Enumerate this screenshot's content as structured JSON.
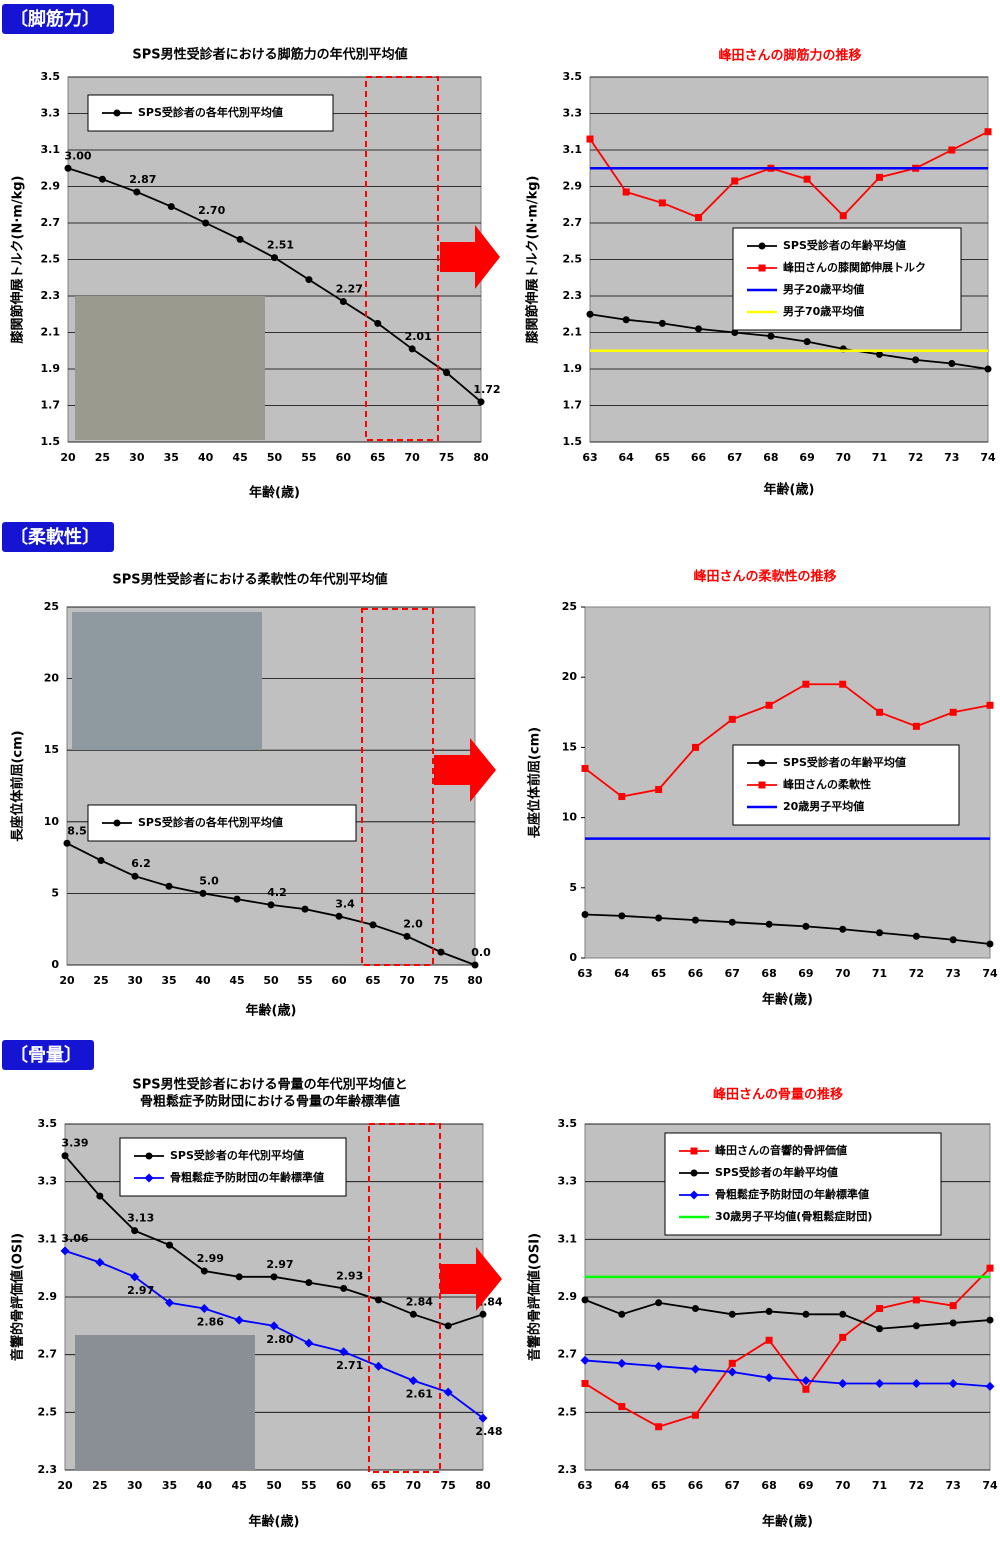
{
  "sections": [
    "〔脚筋力〕",
    "〔柔軟性〕",
    "〔骨量〕"
  ],
  "chart_data": [
    {
      "type": "line",
      "title": "SPS男性受診者における脚筋力の年代別平均値",
      "title_color": "#000000",
      "x_label": "年齢(歳)",
      "y_label": "膝関節伸展トルク(N·m/kg)",
      "categories": [
        "20",
        "25",
        "30",
        "35",
        "40",
        "45",
        "50",
        "55",
        "60",
        "65",
        "70",
        "75",
        "80"
      ],
      "ylim": [
        1.5,
        3.5
      ],
      "yticks": [
        1.5,
        1.7,
        1.9,
        2.1,
        2.3,
        2.5,
        2.7,
        2.9,
        3.1,
        3.3,
        3.5
      ],
      "grid": true,
      "series": [
        {
          "name": "SPS受診者の各年代別平均値",
          "color": "#000000",
          "marker": "circle",
          "values": [
            3.0,
            2.94,
            2.87,
            2.79,
            2.7,
            2.61,
            2.51,
            2.39,
            2.27,
            2.15,
            2.01,
            1.88,
            1.72
          ],
          "value_labels": [
            "3.00",
            null,
            "2.87",
            null,
            "2.70",
            null,
            "2.51",
            null,
            "2.27",
            null,
            "2.01",
            null,
            "1.72"
          ]
        }
      ]
    },
    {
      "type": "line",
      "title": "峰田さんの脚筋力の推移",
      "title_color": "#ff0000",
      "x_label": "年齢(歳)",
      "y_label": "膝関節伸展トルク(N·m/kg)",
      "categories": [
        "63",
        "64",
        "65",
        "66",
        "67",
        "68",
        "69",
        "70",
        "71",
        "72",
        "73",
        "74"
      ],
      "ylim": [
        1.5,
        3.5
      ],
      "yticks": [
        1.5,
        1.7,
        1.9,
        2.1,
        2.3,
        2.5,
        2.7,
        2.9,
        3.1,
        3.3,
        3.5
      ],
      "grid": true,
      "series": [
        {
          "name": "SPS受診者の年齢平均値",
          "color": "#000000",
          "marker": "circle",
          "values": [
            2.2,
            2.17,
            2.15,
            2.12,
            2.1,
            2.08,
            2.05,
            2.01,
            1.98,
            1.95,
            1.93,
            1.9
          ]
        },
        {
          "name": "峰田さんの膝関節伸展トルク",
          "color": "#ff0000",
          "marker": "square",
          "values": [
            3.16,
            2.87,
            2.81,
            2.73,
            2.93,
            3.0,
            2.94,
            2.74,
            2.95,
            3.0,
            3.1,
            3.2
          ]
        },
        {
          "name": "男子20歳平均値",
          "color": "#0000ff",
          "marker": "none",
          "value": 3.0
        },
        {
          "name": "男子70歳平均値",
          "color": "#ffff00",
          "marker": "none",
          "value": 2.0
        }
      ]
    },
    {
      "type": "line",
      "title": "SPS男性受診者における柔軟性の年代別平均値",
      "title_color": "#000000",
      "x_label": "年齢(歳)",
      "y_label": "長座位体前屈(cm)",
      "categories": [
        "20",
        "25",
        "30",
        "35",
        "40",
        "45",
        "50",
        "55",
        "60",
        "65",
        "70",
        "75",
        "80"
      ],
      "ylim": [
        0,
        25
      ],
      "yticks": [
        0,
        5,
        10,
        15,
        20,
        25
      ],
      "grid": true,
      "series": [
        {
          "name": "SPS受診者の各年代別平均値",
          "color": "#000000",
          "marker": "circle",
          "values": [
            8.5,
            7.3,
            6.2,
            5.5,
            5.0,
            4.6,
            4.2,
            3.9,
            3.4,
            2.8,
            2.0,
            0.9,
            0.0
          ],
          "value_labels": [
            "8.5",
            null,
            "6.2",
            null,
            "5.0",
            null,
            "4.2",
            null,
            "3.4",
            null,
            "2.0",
            null,
            "0.0"
          ]
        }
      ]
    },
    {
      "type": "line",
      "title": "峰田さんの柔軟性の推移",
      "title_color": "#ff0000",
      "x_label": "年齢(歳)",
      "y_label": "長座位体前屈(cm)",
      "categories": [
        "63",
        "64",
        "65",
        "66",
        "67",
        "68",
        "69",
        "70",
        "71",
        "72",
        "73",
        "74"
      ],
      "ylim": [
        0,
        25
      ],
      "yticks": [
        0,
        5,
        10,
        15,
        20,
        25
      ],
      "grid": false,
      "series": [
        {
          "name": "SPS受診者の年齢平均値",
          "color": "#000000",
          "marker": "circle",
          "values": [
            3.1,
            3.0,
            2.85,
            2.7,
            2.55,
            2.4,
            2.25,
            2.05,
            1.8,
            1.55,
            1.3,
            1.0
          ]
        },
        {
          "name": "峰田さんの柔軟性",
          "color": "#ff0000",
          "marker": "square",
          "values": [
            13.5,
            11.5,
            12.0,
            15.0,
            17.0,
            18.0,
            19.5,
            19.5,
            17.5,
            16.5,
            17.5,
            18.0
          ]
        },
        {
          "name": "20歳男子平均値",
          "color": "#0000ff",
          "marker": "none",
          "value": 8.5
        }
      ]
    },
    {
      "type": "line",
      "title": [
        "SPS男性受診者における骨量の年代別平均値と",
        "骨粗鬆症予防財団における骨量の年齢標準値"
      ],
      "title_color": "#000000",
      "x_label": "年齢(歳)",
      "y_label": "音響的骨評価値(OSI)",
      "categories": [
        "20",
        "25",
        "30",
        "35",
        "40",
        "45",
        "50",
        "55",
        "60",
        "65",
        "70",
        "75",
        "80"
      ],
      "ylim": [
        2.3,
        3.5
      ],
      "yticks": [
        2.3,
        2.5,
        2.7,
        2.9,
        3.1,
        3.3,
        3.5
      ],
      "grid": true,
      "series": [
        {
          "name": "SPS受診者の年代別平均値",
          "color": "#000000",
          "marker": "circle",
          "values": [
            3.39,
            3.25,
            3.13,
            3.08,
            2.99,
            2.97,
            2.97,
            2.95,
            2.93,
            2.89,
            2.84,
            2.8,
            2.84
          ],
          "value_labels": [
            "3.39",
            null,
            "3.13",
            null,
            "2.99",
            null,
            "2.97",
            null,
            "2.93",
            null,
            "2.84",
            null,
            "2.84"
          ]
        },
        {
          "name": "骨粗鬆症予防財団の年齢標準値",
          "color": "#0000ff",
          "marker": "diamond",
          "values": [
            3.06,
            3.02,
            2.97,
            2.88,
            2.86,
            2.82,
            2.8,
            2.74,
            2.71,
            2.66,
            2.61,
            2.57,
            2.48
          ],
          "value_labels": [
            "3.06",
            null,
            "2.97",
            null,
            "2.86",
            null,
            "2.80",
            null,
            "2.71",
            null,
            "2.61",
            null,
            "2.48"
          ]
        }
      ]
    },
    {
      "type": "line",
      "title": "峰田さんの骨量の推移",
      "title_color": "#ff0000",
      "x_label": "年齢(歳)",
      "y_label": "音響的骨評価値(OSI)",
      "categories": [
        "63",
        "64",
        "65",
        "66",
        "67",
        "68",
        "69",
        "70",
        "71",
        "72",
        "73",
        "74"
      ],
      "ylim": [
        2.3,
        3.5
      ],
      "yticks": [
        2.3,
        2.5,
        2.7,
        2.9,
        3.1,
        3.3,
        3.5
      ],
      "grid": true,
      "series": [
        {
          "name": "峰田さんの音響的骨評価値",
          "color": "#ff0000",
          "marker": "square",
          "values": [
            2.6,
            2.52,
            2.45,
            2.49,
            2.67,
            2.75,
            2.58,
            2.76,
            2.86,
            2.89,
            2.87,
            3.0
          ]
        },
        {
          "name": "SPS受診者の年齢平均値",
          "color": "#000000",
          "marker": "circle",
          "values": [
            2.89,
            2.84,
            2.88,
            2.86,
            2.84,
            2.85,
            2.84,
            2.84,
            2.79,
            2.8,
            2.81,
            2.82
          ]
        },
        {
          "name": "骨粗鬆症予防財団の年齢標準値",
          "color": "#0000ff",
          "marker": "diamond",
          "values": [
            2.68,
            2.67,
            2.66,
            2.65,
            2.64,
            2.62,
            2.61,
            2.6,
            2.6,
            2.6,
            2.6,
            2.59
          ]
        },
        {
          "name": "30歳男子平均値(骨粗鬆症財団)",
          "color": "#00ff00",
          "marker": "none",
          "value": 2.97
        }
      ]
    }
  ]
}
